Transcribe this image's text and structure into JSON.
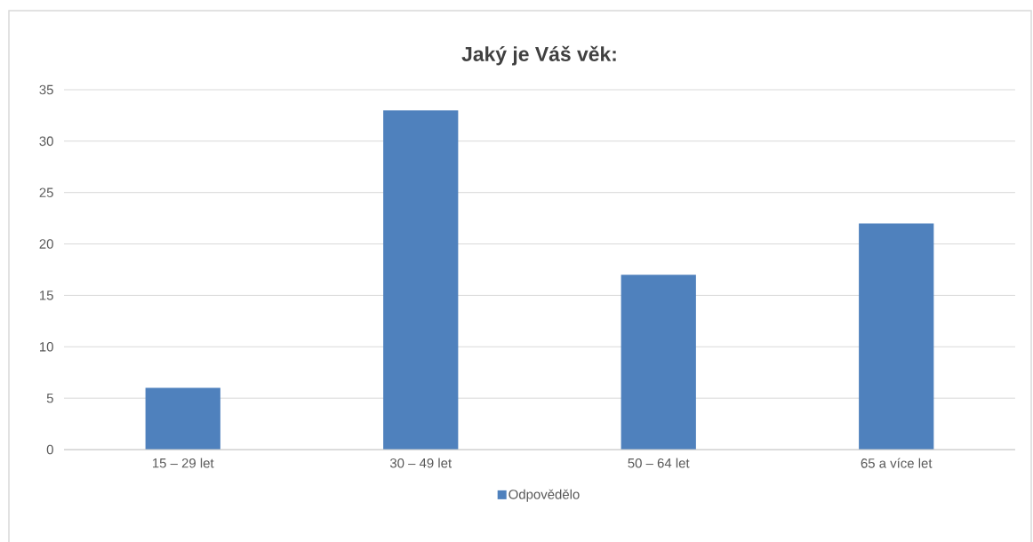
{
  "chart_data": {
    "type": "bar",
    "title": "Jaký je Váš věk:",
    "categories": [
      "15 – 29 let",
      "30 – 49 let",
      "50 – 64 let",
      "65 a více let"
    ],
    "series": [
      {
        "name": "Odpovědělo",
        "color": "#4f81bd",
        "values": [
          6,
          33,
          17,
          22
        ]
      }
    ],
    "ylim": [
      0,
      35
    ],
    "yticks": [
      0,
      5,
      10,
      15,
      20,
      25,
      30,
      35
    ],
    "grid": "y",
    "legend": "bottom"
  }
}
